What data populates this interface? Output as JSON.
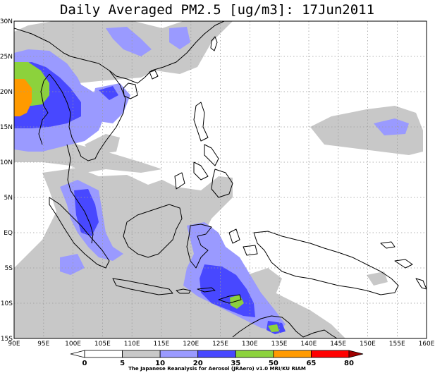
{
  "title": "Daily Averaged PM2.5 [ug/m3]: 17Jun2011",
  "map": {
    "lon_range": [
      90,
      160
    ],
    "lat_range": [
      -15,
      30
    ],
    "lon_ticks": [
      "90E",
      "95E",
      "100E",
      "105E",
      "110E",
      "115E",
      "120E",
      "125E",
      "130E",
      "135E",
      "140E",
      "145E",
      "150E",
      "155E",
      "160E"
    ],
    "lat_ticks": [
      "30N",
      "25N",
      "20N",
      "15N",
      "10N",
      "5N",
      "EQ",
      "5S",
      "10S",
      "15S"
    ],
    "grid": "dotted"
  },
  "colorbar": {
    "levels": [
      "0",
      "5",
      "10",
      "20",
      "35",
      "50",
      "65",
      "80"
    ],
    "colors": [
      "#ffffff",
      "#ffffff",
      "#c8c8c8",
      "#9a9aff",
      "#4848ff",
      "#8cd23c",
      "#ff9a00",
      "#ff0000",
      "#a00000"
    ]
  },
  "credit": "The Japanese Reanalysis for Aerosol (JRAero) v1.0 MRI/KU RIAM"
}
